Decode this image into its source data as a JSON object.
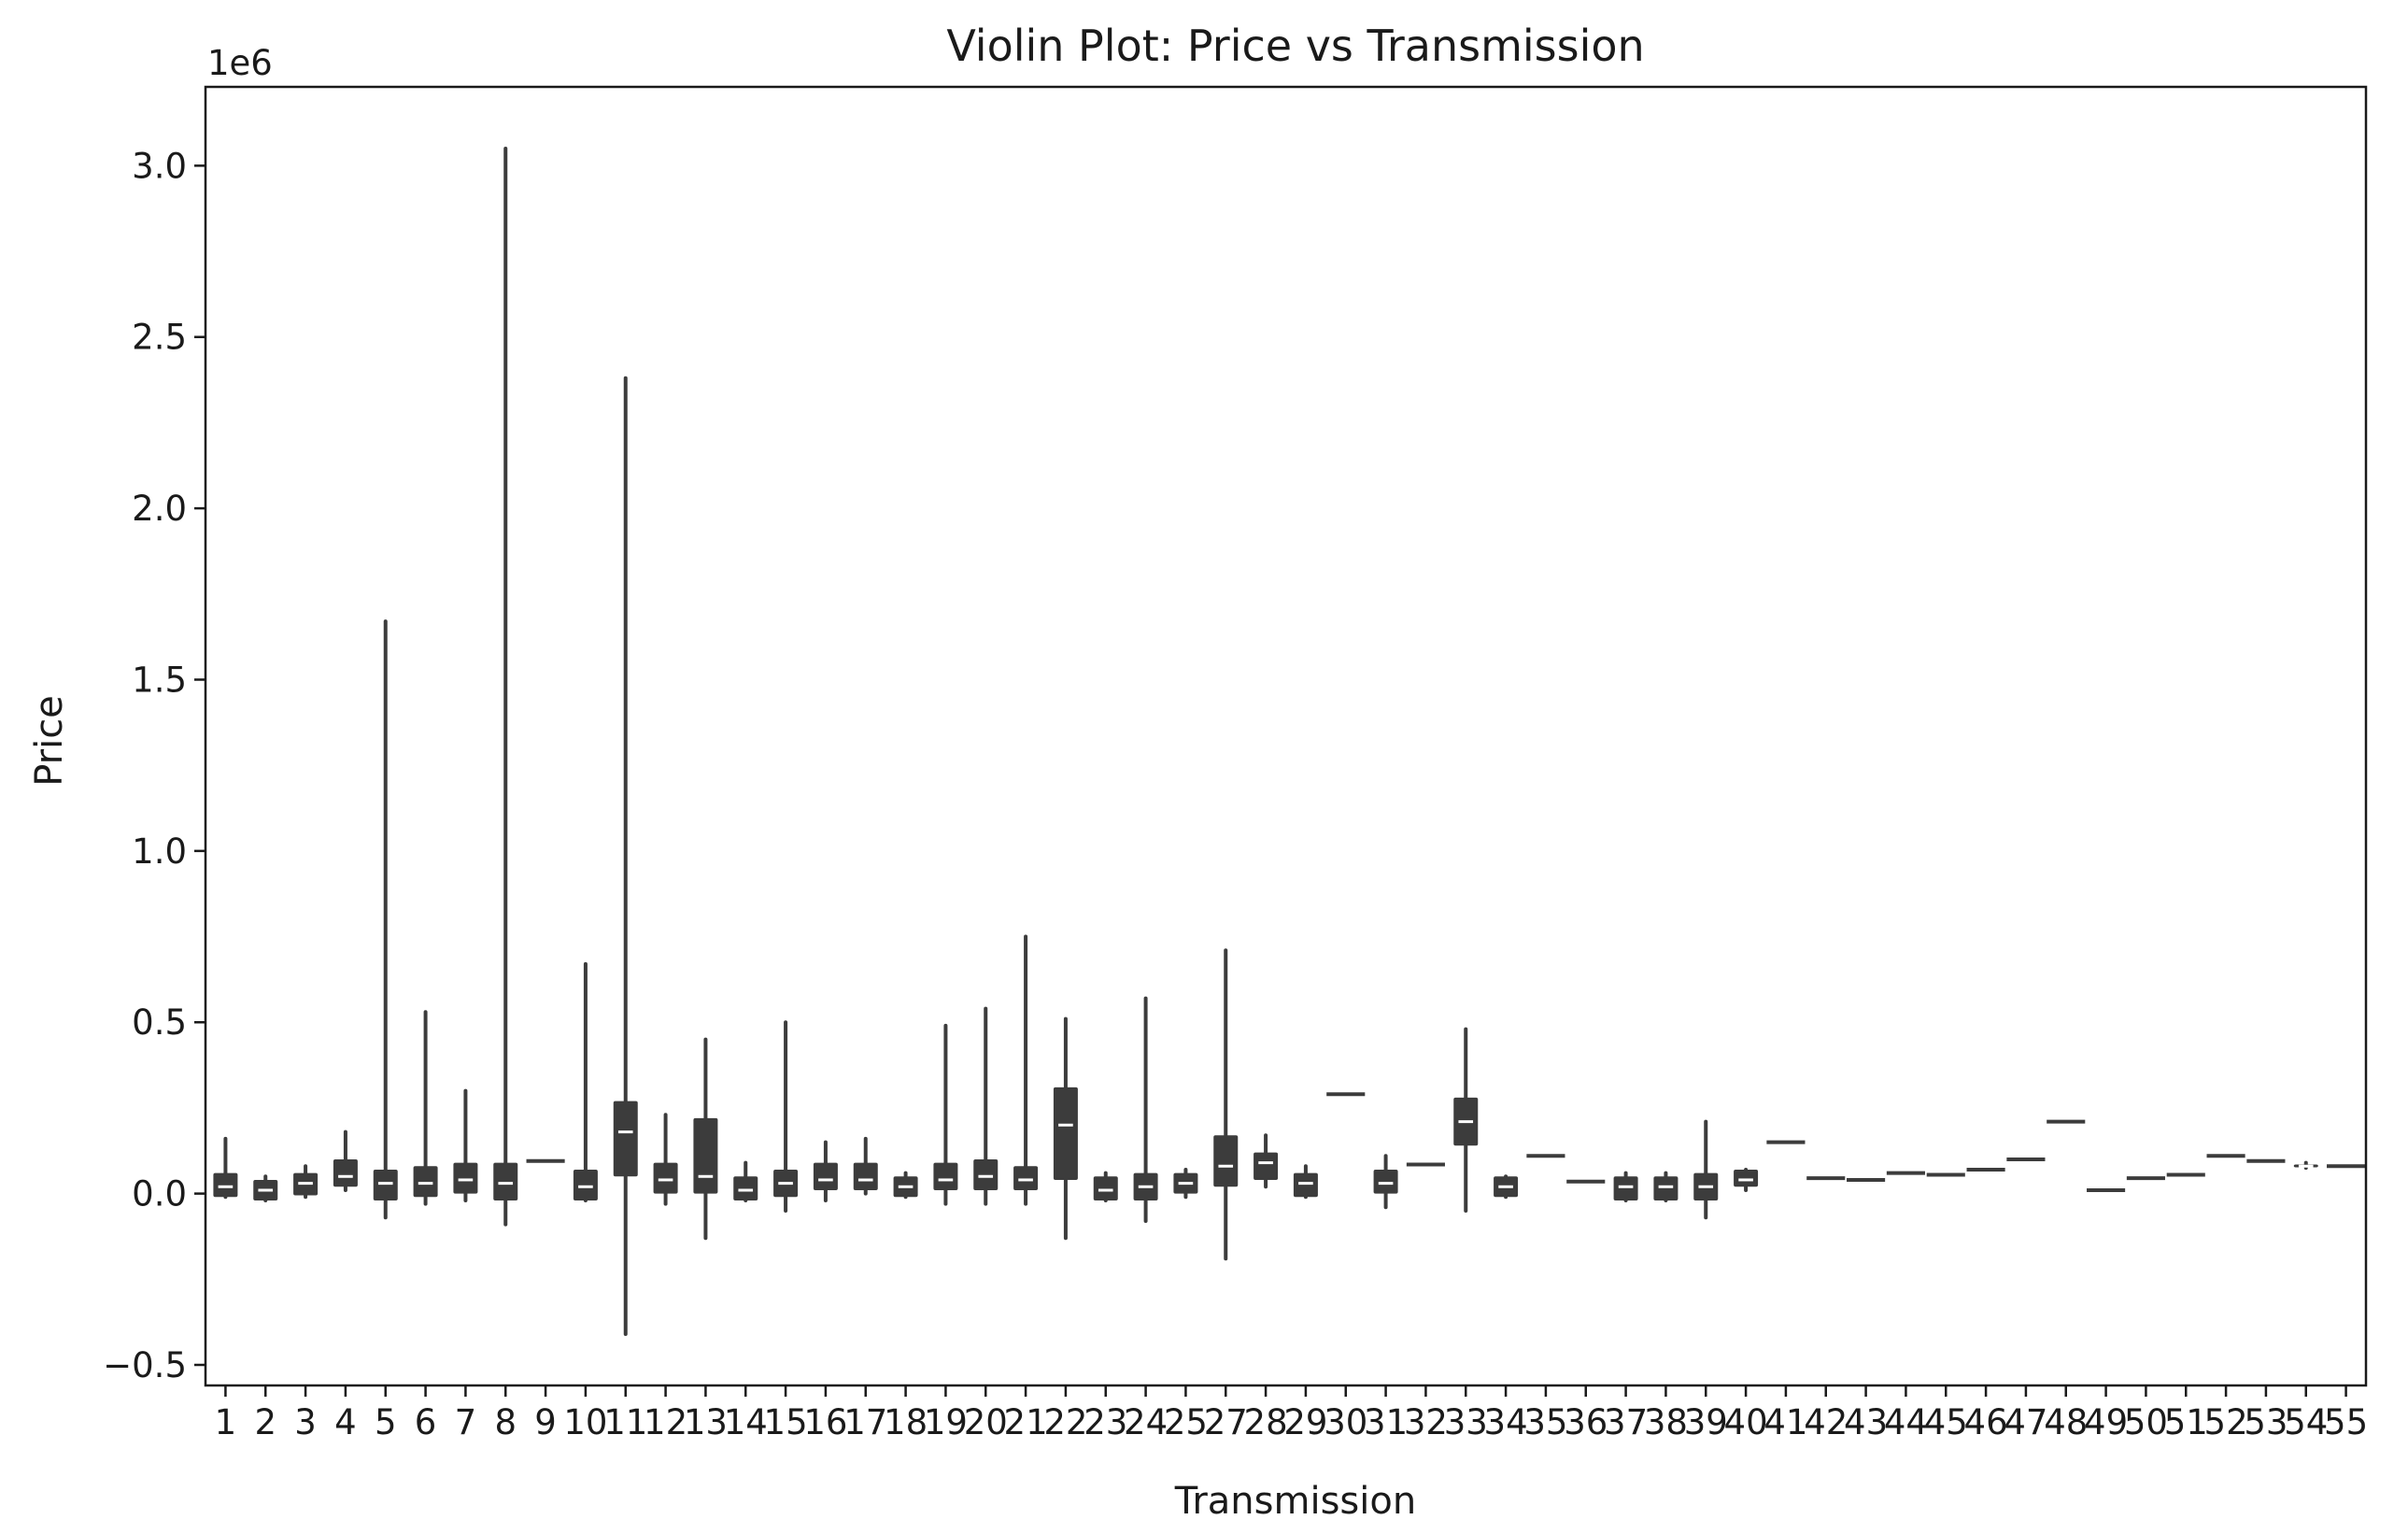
{
  "chart_data": {
    "type": "violin",
    "title": "Violin Plot: Price vs Transmission",
    "xlabel": "Transmission",
    "ylabel": "Price",
    "y_scale_label": "1e6",
    "ylim": [
      -0.56,
      3.23
    ],
    "y_ticks": [
      -0.5,
      0.0,
      0.5,
      1.0,
      1.5,
      2.0,
      2.5,
      3.0
    ],
    "y_tick_labels": [
      "−0.5",
      "0.0",
      "0.5",
      "1.0",
      "1.5",
      "2.0",
      "2.5",
      "3.0"
    ],
    "value_units": "1e6",
    "color": "#3c3c3c",
    "median_color": "#ffffff",
    "categories": [
      "1",
      "2",
      "3",
      "4",
      "5",
      "6",
      "7",
      "8",
      "9",
      "10",
      "11",
      "12",
      "13",
      "14",
      "15",
      "16",
      "17",
      "18",
      "19",
      "20",
      "21",
      "22",
      "23",
      "24",
      "25",
      "27",
      "28",
      "29",
      "30",
      "31",
      "32",
      "33",
      "34",
      "35",
      "36",
      "37",
      "38",
      "39",
      "40",
      "41",
      "42",
      "43",
      "44",
      "45",
      "46",
      "47",
      "48",
      "49",
      "50",
      "51",
      "52",
      "53",
      "54",
      "55"
    ],
    "series": [
      {
        "cat": "1",
        "min": -0.01,
        "q1": -0.01,
        "median": 0.02,
        "q3": 0.06,
        "max": 0.16
      },
      {
        "cat": "2",
        "min": -0.02,
        "q1": -0.02,
        "median": 0.01,
        "q3": 0.04,
        "max": 0.05
      },
      {
        "cat": "3",
        "min": -0.01,
        "q1": -0.005,
        "median": 0.03,
        "q3": 0.06,
        "max": 0.08
      },
      {
        "cat": "4",
        "min": 0.01,
        "q1": 0.02,
        "median": 0.05,
        "q3": 0.1,
        "max": 0.18
      },
      {
        "cat": "5",
        "min": -0.07,
        "q1": -0.02,
        "median": 0.03,
        "q3": 0.07,
        "max": 1.67
      },
      {
        "cat": "6",
        "min": -0.03,
        "q1": -0.01,
        "median": 0.03,
        "q3": 0.08,
        "max": 0.53
      },
      {
        "cat": "7",
        "min": -0.02,
        "q1": 0.0,
        "median": 0.04,
        "q3": 0.09,
        "max": 0.3
      },
      {
        "cat": "8",
        "min": -0.09,
        "q1": -0.02,
        "median": 0.03,
        "q3": 0.09,
        "max": 3.05
      },
      {
        "cat": "9",
        "min": 0.095,
        "q1": 0.095,
        "median": 0.095,
        "q3": 0.095,
        "max": 0.095
      },
      {
        "cat": "10",
        "min": -0.02,
        "q1": -0.02,
        "median": 0.02,
        "q3": 0.07,
        "max": 0.67
      },
      {
        "cat": "11",
        "min": -0.41,
        "q1": 0.05,
        "median": 0.18,
        "q3": 0.27,
        "max": 2.38
      },
      {
        "cat": "12",
        "min": -0.03,
        "q1": 0.0,
        "median": 0.04,
        "q3": 0.09,
        "max": 0.23
      },
      {
        "cat": "13",
        "min": -0.13,
        "q1": 0.0,
        "median": 0.05,
        "q3": 0.22,
        "max": 0.45
      },
      {
        "cat": "14",
        "min": -0.02,
        "q1": -0.02,
        "median": 0.01,
        "q3": 0.05,
        "max": 0.09
      },
      {
        "cat": "15",
        "min": -0.05,
        "q1": -0.01,
        "median": 0.03,
        "q3": 0.07,
        "max": 0.5
      },
      {
        "cat": "16",
        "min": -0.02,
        "q1": 0.01,
        "median": 0.04,
        "q3": 0.09,
        "max": 0.15
      },
      {
        "cat": "17",
        "min": 0.0,
        "q1": 0.01,
        "median": 0.04,
        "q3": 0.09,
        "max": 0.16
      },
      {
        "cat": "18",
        "min": -0.01,
        "q1": -0.01,
        "median": 0.02,
        "q3": 0.05,
        "max": 0.06
      },
      {
        "cat": "19",
        "min": -0.03,
        "q1": 0.01,
        "median": 0.04,
        "q3": 0.09,
        "max": 0.49
      },
      {
        "cat": "20",
        "min": -0.03,
        "q1": 0.01,
        "median": 0.05,
        "q3": 0.1,
        "max": 0.54
      },
      {
        "cat": "21",
        "min": -0.03,
        "q1": 0.01,
        "median": 0.04,
        "q3": 0.08,
        "max": 0.75
      },
      {
        "cat": "22",
        "min": -0.13,
        "q1": 0.04,
        "median": 0.2,
        "q3": 0.31,
        "max": 0.51
      },
      {
        "cat": "23",
        "min": -0.02,
        "q1": -0.02,
        "median": 0.01,
        "q3": 0.05,
        "max": 0.06
      },
      {
        "cat": "24",
        "min": -0.08,
        "q1": -0.02,
        "median": 0.02,
        "q3": 0.06,
        "max": 0.57
      },
      {
        "cat": "25",
        "min": -0.01,
        "q1": 0.0,
        "median": 0.03,
        "q3": 0.06,
        "max": 0.07
      },
      {
        "cat": "27",
        "min": -0.19,
        "q1": 0.02,
        "median": 0.08,
        "q3": 0.17,
        "max": 0.71
      },
      {
        "cat": "28",
        "min": 0.02,
        "q1": 0.04,
        "median": 0.09,
        "q3": 0.12,
        "max": 0.17
      },
      {
        "cat": "29",
        "min": -0.01,
        "q1": -0.01,
        "median": 0.03,
        "q3": 0.06,
        "max": 0.08
      },
      {
        "cat": "30",
        "min": 0.29,
        "q1": 0.29,
        "median": 0.29,
        "q3": 0.29,
        "max": 0.29
      },
      {
        "cat": "31",
        "min": -0.04,
        "q1": 0.0,
        "median": 0.03,
        "q3": 0.07,
        "max": 0.11
      },
      {
        "cat": "32",
        "min": 0.085,
        "q1": 0.085,
        "median": 0.085,
        "q3": 0.085,
        "max": 0.085
      },
      {
        "cat": "33",
        "min": -0.05,
        "q1": 0.14,
        "median": 0.21,
        "q3": 0.28,
        "max": 0.48
      },
      {
        "cat": "34",
        "min": -0.01,
        "q1": -0.01,
        "median": 0.02,
        "q3": 0.05,
        "max": 0.05
      },
      {
        "cat": "35",
        "min": 0.11,
        "q1": 0.11,
        "median": 0.11,
        "q3": 0.11,
        "max": 0.11
      },
      {
        "cat": "36",
        "min": 0.035,
        "q1": 0.035,
        "median": 0.035,
        "q3": 0.035,
        "max": 0.035
      },
      {
        "cat": "37",
        "min": -0.02,
        "q1": -0.02,
        "median": 0.02,
        "q3": 0.05,
        "max": 0.06
      },
      {
        "cat": "38",
        "min": -0.02,
        "q1": -0.02,
        "median": 0.02,
        "q3": 0.05,
        "max": 0.06
      },
      {
        "cat": "39",
        "min": -0.07,
        "q1": -0.02,
        "median": 0.02,
        "q3": 0.06,
        "max": 0.21
      },
      {
        "cat": "40",
        "min": 0.01,
        "q1": 0.02,
        "median": 0.04,
        "q3": 0.07,
        "max": 0.07
      },
      {
        "cat": "41",
        "min": 0.15,
        "q1": 0.15,
        "median": 0.15,
        "q3": 0.15,
        "max": 0.15
      },
      {
        "cat": "42",
        "min": 0.045,
        "q1": 0.045,
        "median": 0.045,
        "q3": 0.045,
        "max": 0.045
      },
      {
        "cat": "43",
        "min": 0.04,
        "q1": 0.04,
        "median": 0.04,
        "q3": 0.04,
        "max": 0.04
      },
      {
        "cat": "44",
        "min": 0.06,
        "q1": 0.06,
        "median": 0.06,
        "q3": 0.06,
        "max": 0.06
      },
      {
        "cat": "45",
        "min": 0.055,
        "q1": 0.055,
        "median": 0.055,
        "q3": 0.055,
        "max": 0.055
      },
      {
        "cat": "46",
        "min": 0.07,
        "q1": 0.07,
        "median": 0.07,
        "q3": 0.07,
        "max": 0.07
      },
      {
        "cat": "47",
        "min": 0.1,
        "q1": 0.1,
        "median": 0.1,
        "q3": 0.1,
        "max": 0.1
      },
      {
        "cat": "48",
        "min": 0.21,
        "q1": 0.21,
        "median": 0.21,
        "q3": 0.21,
        "max": 0.21
      },
      {
        "cat": "49",
        "min": 0.01,
        "q1": 0.01,
        "median": 0.01,
        "q3": 0.01,
        "max": 0.01
      },
      {
        "cat": "50",
        "min": 0.045,
        "q1": 0.045,
        "median": 0.045,
        "q3": 0.045,
        "max": 0.045
      },
      {
        "cat": "51",
        "min": 0.055,
        "q1": 0.055,
        "median": 0.055,
        "q3": 0.055,
        "max": 0.055
      },
      {
        "cat": "52",
        "min": 0.11,
        "q1": 0.11,
        "median": 0.11,
        "q3": 0.11,
        "max": 0.11
      },
      {
        "cat": "53",
        "min": 0.095,
        "q1": 0.095,
        "median": 0.095,
        "q3": 0.095,
        "max": 0.095
      },
      {
        "cat": "54",
        "min": 0.075,
        "q1": 0.078,
        "median": 0.08,
        "q3": 0.085,
        "max": 0.09
      },
      {
        "cat": "55",
        "min": 0.08,
        "q1": 0.08,
        "median": 0.08,
        "q3": 0.08,
        "max": 0.08
      }
    ]
  }
}
